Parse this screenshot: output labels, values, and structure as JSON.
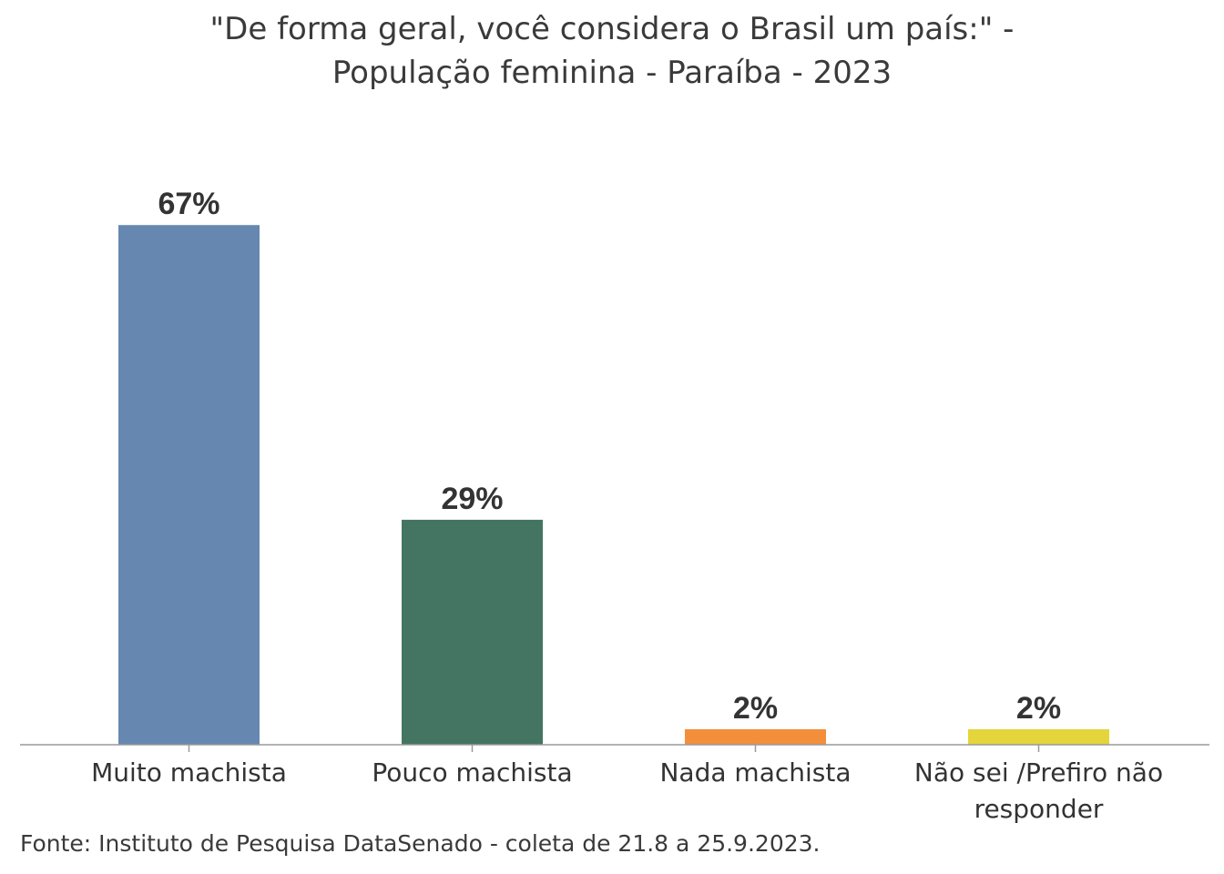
{
  "chart_data": {
    "type": "bar",
    "title_lines": [
      "\"De forma geral, você considera o Brasil um país:\" -",
      "População feminina - Paraíba - 2023"
    ],
    "categories": [
      [
        "Muito machista"
      ],
      [
        "Pouco machista"
      ],
      [
        "Nada machista"
      ],
      [
        "Não sei /Prefiro não",
        "responder"
      ]
    ],
    "values": [
      67,
      29,
      2,
      2
    ],
    "value_labels": [
      "67%",
      "29%",
      "2%",
      "2%"
    ],
    "colors": [
      "#6688b0",
      "#447563",
      "#f38f3b",
      "#e3d53b"
    ],
    "ylim": [
      0,
      75
    ],
    "grid": false,
    "legend": "none",
    "axis_color": "#9a9a9a",
    "text_color": "#333333"
  },
  "source": "Fonte: Instituto de Pesquisa DataSenado - coleta de 21.8 a 25.9.2023."
}
